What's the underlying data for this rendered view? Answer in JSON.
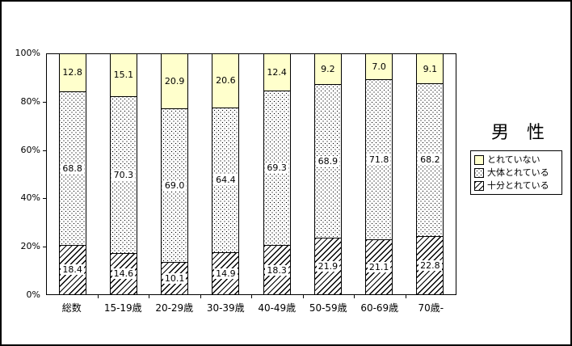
{
  "chart_data": {
    "type": "bar",
    "subtype": "stacked-100-percent-column",
    "title": "男　性",
    "categories": [
      "総数",
      "15-19歳",
      "20-29歳",
      "30-39歳",
      "40-49歳",
      "50-59歳",
      "60-69歳",
      "70歳-"
    ],
    "series": [
      {
        "name": "とれていない",
        "style": "yellow",
        "color": "#FFFFCC",
        "values": [
          12.8,
          15.1,
          20.9,
          20.6,
          12.4,
          9.2,
          7.0,
          9.1
        ]
      },
      {
        "name": "大体とれている",
        "style": "dots",
        "color": "#FFFFFF",
        "values": [
          68.8,
          70.3,
          69.0,
          64.4,
          69.3,
          68.9,
          71.8,
          68.2
        ]
      },
      {
        "name": "十分とれている",
        "style": "hatch",
        "color": "#FFFFFF",
        "values": [
          18.4,
          14.6,
          10.1,
          14.9,
          18.3,
          21.9,
          21.1,
          22.8
        ]
      }
    ],
    "stack_order": "top-to-bottom",
    "value_label_decimals": 1,
    "y_ticks": [
      {
        "label": "0%",
        "value": 0
      },
      {
        "label": "20%",
        "value": 20
      },
      {
        "label": "40%",
        "value": 40
      },
      {
        "label": "60%",
        "value": 60
      },
      {
        "label": "80%",
        "value": 80
      },
      {
        "label": "100%",
        "value": 100
      }
    ],
    "ylim": [
      0,
      100
    ],
    "grid": false,
    "legend_position": "right",
    "xlabel": "",
    "ylabel": ""
  }
}
